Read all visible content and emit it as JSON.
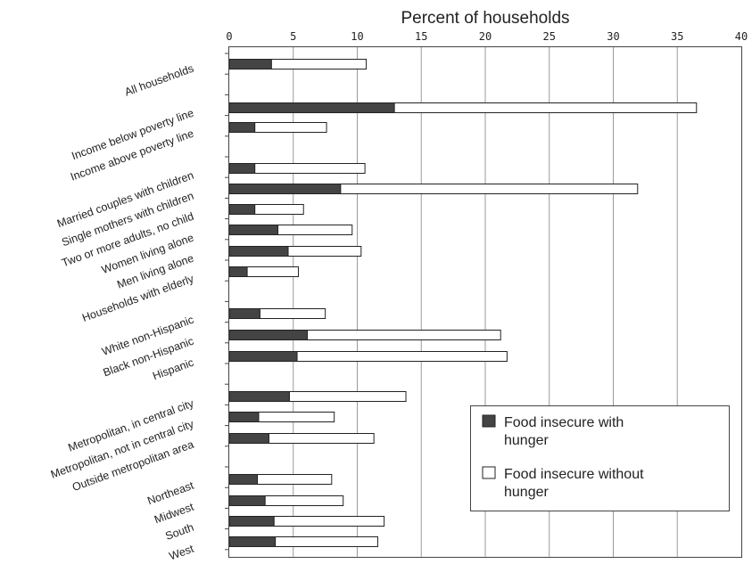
{
  "chart_data": {
    "type": "bar",
    "orientation": "horizontal",
    "stacked": true,
    "title": "Percent of households",
    "xlim": [
      0,
      40
    ],
    "x_ticks": [
      0,
      5,
      10,
      15,
      20,
      25,
      30,
      35,
      40
    ],
    "grid": true,
    "legend_position": "bottom-right",
    "categories": [
      "All households",
      "Income below poverty line",
      "Income above poverty line",
      "Married couples with children",
      "Single mothers with children",
      "Two or more adults, no child",
      "Women living alone",
      "Men living alone",
      "Households with elderly",
      "White non-Hispanic",
      "Black non-Hispanic",
      "Hispanic",
      "Metropolitan, in central city",
      "Metropolitan, not in central city",
      "Outside metropolitan area",
      "Northeast",
      "Midwest",
      "South",
      "West"
    ],
    "series": [
      {
        "name": "Food insecure with hunger",
        "color": "#444444",
        "values": [
          3.3,
          12.9,
          2.0,
          2.0,
          8.7,
          2.0,
          3.8,
          4.6,
          1.4,
          2.4,
          6.1,
          5.3,
          4.7,
          2.3,
          3.1,
          2.2,
          2.8,
          3.5,
          3.6
        ]
      },
      {
        "name": "Food insecure without hunger",
        "color": "#ffffff",
        "values": [
          7.4,
          23.6,
          5.6,
          8.6,
          23.2,
          3.8,
          5.8,
          5.7,
          4.0,
          5.1,
          15.1,
          16.4,
          9.1,
          5.9,
          8.2,
          5.8,
          6.1,
          8.6,
          8.0
        ]
      }
    ]
  }
}
